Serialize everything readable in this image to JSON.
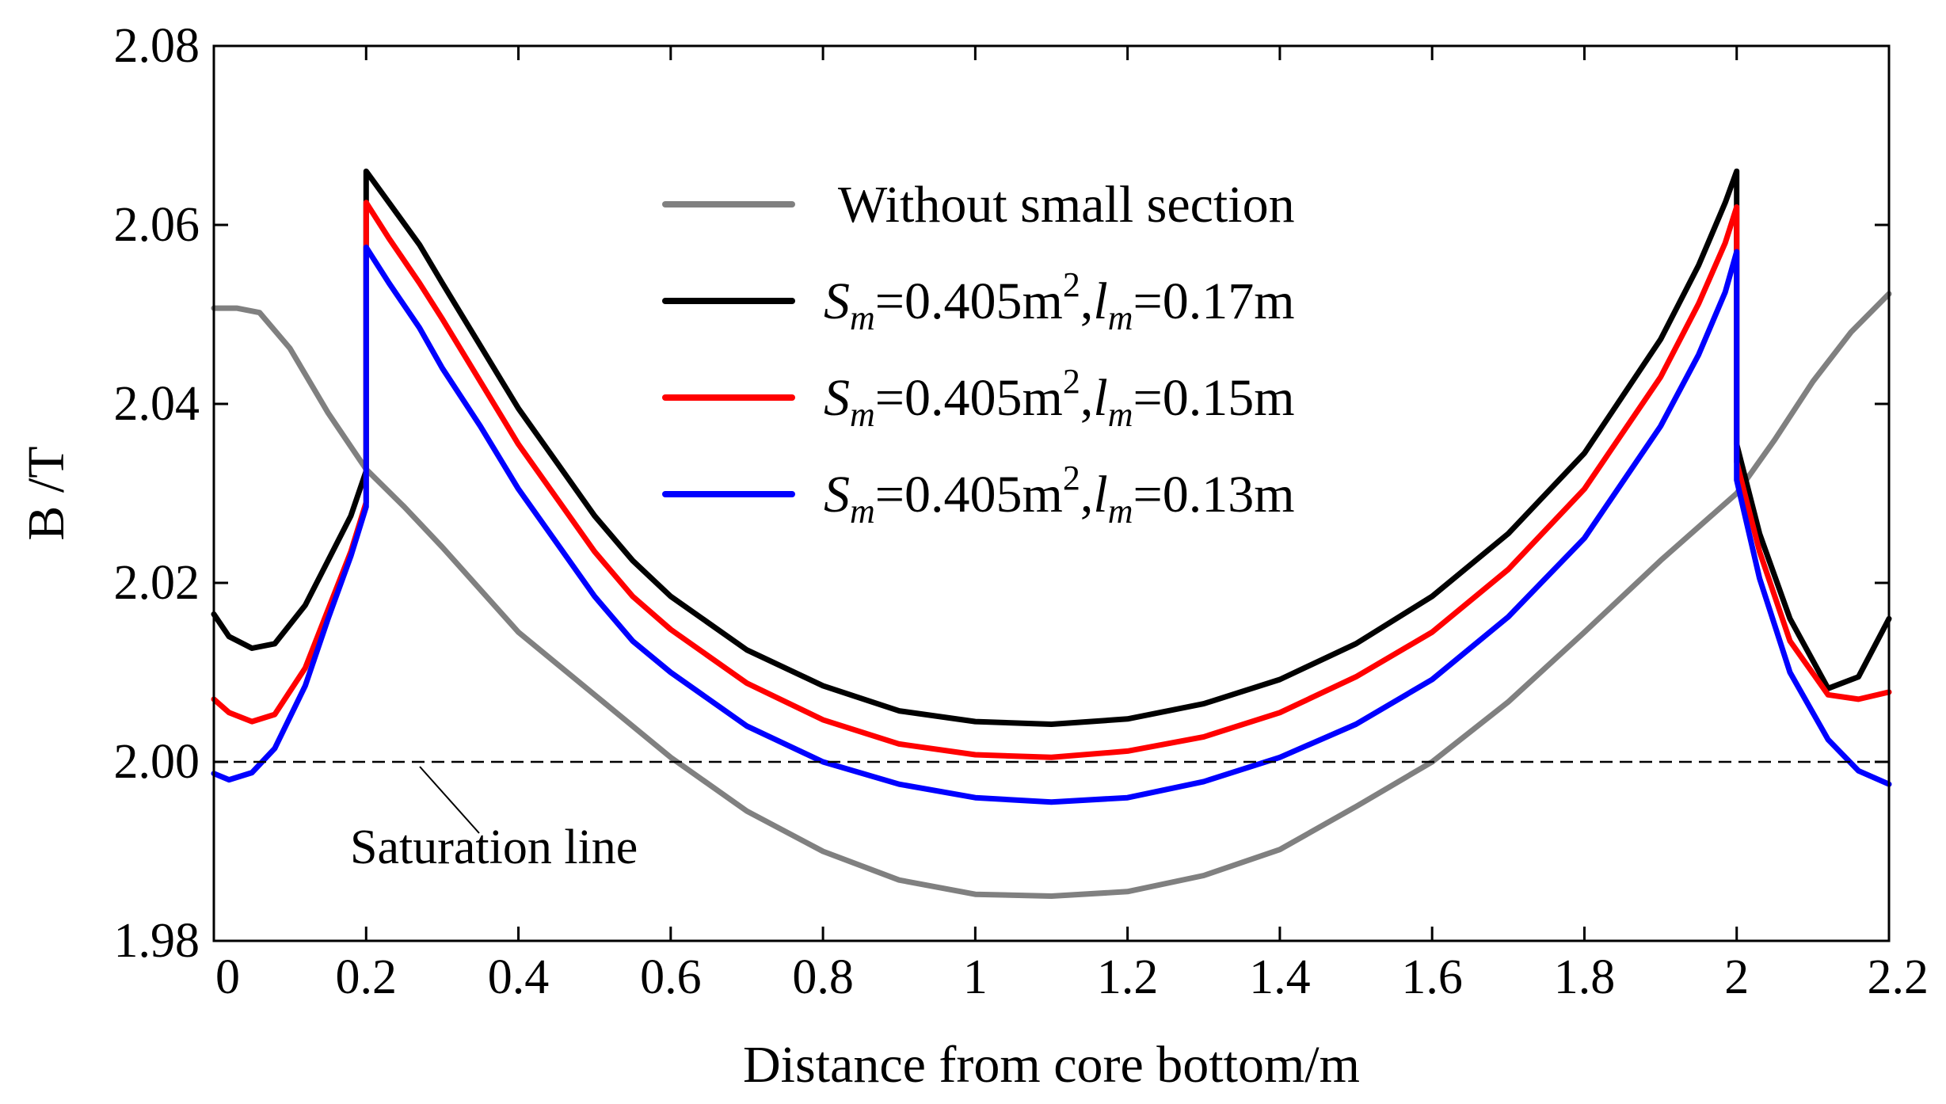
{
  "chart_data": {
    "type": "line",
    "title": "",
    "xlabel": "Distance from core bottom/m",
    "ylabel": "B /T",
    "xlim": [
      0,
      2.2
    ],
    "ylim": [
      1.98,
      2.08
    ],
    "grid": false,
    "legend_position": "top-center",
    "x_ticks": [
      0,
      0.2,
      0.4,
      0.6,
      0.8,
      1.0,
      1.2,
      1.4,
      1.6,
      1.8,
      2.0,
      2.2
    ],
    "x_tick_labels": [
      "0",
      "0.2",
      "0.4",
      "0.6",
      "0.8",
      "1",
      "1.2",
      "1.4",
      "1.6",
      "1.8",
      "2",
      "2.2"
    ],
    "y_ticks": [
      1.98,
      2.0,
      2.02,
      2.04,
      2.06,
      2.08
    ],
    "y_tick_labels": [
      "1.98",
      "2.00",
      "2.02",
      "2.04",
      "2.06",
      "2.08"
    ],
    "saturation_line": {
      "y": 2.0,
      "label": "Saturation line"
    },
    "series": [
      {
        "name": "Without small section",
        "legend": {
          "prefix": "",
          "var1": "",
          "sub1": "",
          "mid": "",
          "sup": "",
          "sep": "",
          "var2": "",
          "sub2": "",
          "suffix": "Without small section"
        },
        "color": "#808080",
        "x": [
          0,
          0.03,
          0.06,
          0.1,
          0.15,
          0.2,
          0.25,
          0.3,
          0.4,
          0.5,
          0.6,
          0.7,
          0.8,
          0.9,
          1.0,
          1.1,
          1.2,
          1.3,
          1.4,
          1.5,
          1.6,
          1.7,
          1.8,
          1.9,
          2.0,
          2.05,
          2.1,
          2.15,
          2.2
        ],
        "y": [
          2.0507,
          2.0507,
          2.0502,
          2.0462,
          2.039,
          2.0327,
          2.0285,
          2.024,
          2.0145,
          2.0075,
          2.0005,
          1.9945,
          1.99,
          1.9868,
          1.9852,
          1.985,
          1.9855,
          1.9873,
          1.9902,
          1.995,
          2.0,
          2.0067,
          2.0145,
          2.0225,
          2.03,
          2.036,
          2.0425,
          2.048,
          2.0523
        ]
      },
      {
        "name": "Sm=0.405m2,lm=0.17m",
        "legend": {
          "prefix": "",
          "var1": "S",
          "sub1": "m",
          "mid": "=0.405m",
          "sup": "2",
          "sep": ",",
          "var2": "l",
          "sub2": "m",
          "suffix": "=0.17m"
        },
        "color": "#000000",
        "x": [
          0,
          0.02,
          0.05,
          0.08,
          0.12,
          0.15,
          0.18,
          0.2,
          0.2,
          0.23,
          0.27,
          0.3,
          0.35,
          0.4,
          0.45,
          0.5,
          0.55,
          0.6,
          0.7,
          0.8,
          0.9,
          1.0,
          1.1,
          1.2,
          1.3,
          1.4,
          1.5,
          1.6,
          1.7,
          1.8,
          1.9,
          1.95,
          1.985,
          2.0,
          2.0,
          2.03,
          2.07,
          2.12,
          2.16,
          2.2
        ],
        "y": [
          2.0165,
          2.014,
          2.0127,
          2.0132,
          2.0175,
          2.0225,
          2.0275,
          2.0325,
          2.066,
          2.0625,
          2.0578,
          2.0535,
          2.0465,
          2.0395,
          2.0335,
          2.0275,
          2.0225,
          2.0185,
          2.0125,
          2.0085,
          2.0057,
          2.0045,
          2.0042,
          2.0048,
          2.0065,
          2.0092,
          2.0132,
          2.0185,
          2.0255,
          2.0345,
          2.0472,
          2.0555,
          2.0625,
          2.066,
          2.0355,
          2.0255,
          2.016,
          2.0082,
          2.0095,
          2.016
        ]
      },
      {
        "name": "Sm=0.405m2,lm=0.15m",
        "legend": {
          "prefix": "",
          "var1": "S",
          "sub1": "m",
          "mid": "=0.405m",
          "sup": "2",
          "sep": ",",
          "var2": "l",
          "sub2": "m",
          "suffix": "=0.15m"
        },
        "color": "#ff0000",
        "x": [
          0,
          0.02,
          0.05,
          0.08,
          0.12,
          0.15,
          0.18,
          0.2,
          0.2,
          0.23,
          0.27,
          0.3,
          0.35,
          0.4,
          0.45,
          0.5,
          0.55,
          0.6,
          0.7,
          0.8,
          0.9,
          1.0,
          1.1,
          1.2,
          1.3,
          1.4,
          1.5,
          1.6,
          1.7,
          1.8,
          1.9,
          1.95,
          1.985,
          2.0,
          2.0,
          2.03,
          2.07,
          2.12,
          2.16,
          2.2
        ],
        "y": [
          2.007,
          2.0055,
          2.0045,
          2.0053,
          2.0105,
          2.017,
          2.0235,
          2.029,
          2.0625,
          2.0585,
          2.0535,
          2.0495,
          2.0425,
          2.0355,
          2.0295,
          2.0235,
          2.0185,
          2.0148,
          2.0088,
          2.0047,
          2.002,
          2.0008,
          2.0005,
          2.0012,
          2.0028,
          2.0055,
          2.0095,
          2.0145,
          2.0215,
          2.0305,
          2.043,
          2.0512,
          2.058,
          2.062,
          2.0335,
          2.0235,
          2.0135,
          2.0075,
          2.007,
          2.0078
        ]
      },
      {
        "name": "Sm=0.405m2,lm=0.13m",
        "legend": {
          "prefix": "",
          "var1": "S",
          "sub1": "m",
          "mid": "=0.405m",
          "sup": "2",
          "sep": ",",
          "var2": "l",
          "sub2": "m",
          "suffix": "=0.13m"
        },
        "color": "#0000ff",
        "x": [
          0,
          0.02,
          0.05,
          0.08,
          0.12,
          0.15,
          0.18,
          0.2,
          0.2,
          0.23,
          0.27,
          0.3,
          0.35,
          0.4,
          0.45,
          0.5,
          0.55,
          0.6,
          0.7,
          0.8,
          0.9,
          1.0,
          1.1,
          1.2,
          1.3,
          1.4,
          1.5,
          1.6,
          1.7,
          1.8,
          1.9,
          1.95,
          1.985,
          2.0,
          2.0,
          2.03,
          2.07,
          2.12,
          2.16,
          2.2
        ],
        "y": [
          1.9987,
          1.998,
          1.9988,
          2.0015,
          2.0085,
          2.016,
          2.023,
          2.0285,
          2.0575,
          2.0535,
          2.0485,
          2.044,
          2.0375,
          2.0305,
          2.0245,
          2.0185,
          2.0135,
          2.01,
          2.004,
          2.0,
          1.9975,
          1.996,
          1.9955,
          1.996,
          1.9978,
          2.0005,
          2.0042,
          2.0092,
          2.0162,
          2.025,
          2.0375,
          2.0455,
          2.0525,
          2.057,
          2.0315,
          2.0205,
          2.01,
          2.0025,
          1.999,
          1.9975
        ]
      }
    ]
  }
}
